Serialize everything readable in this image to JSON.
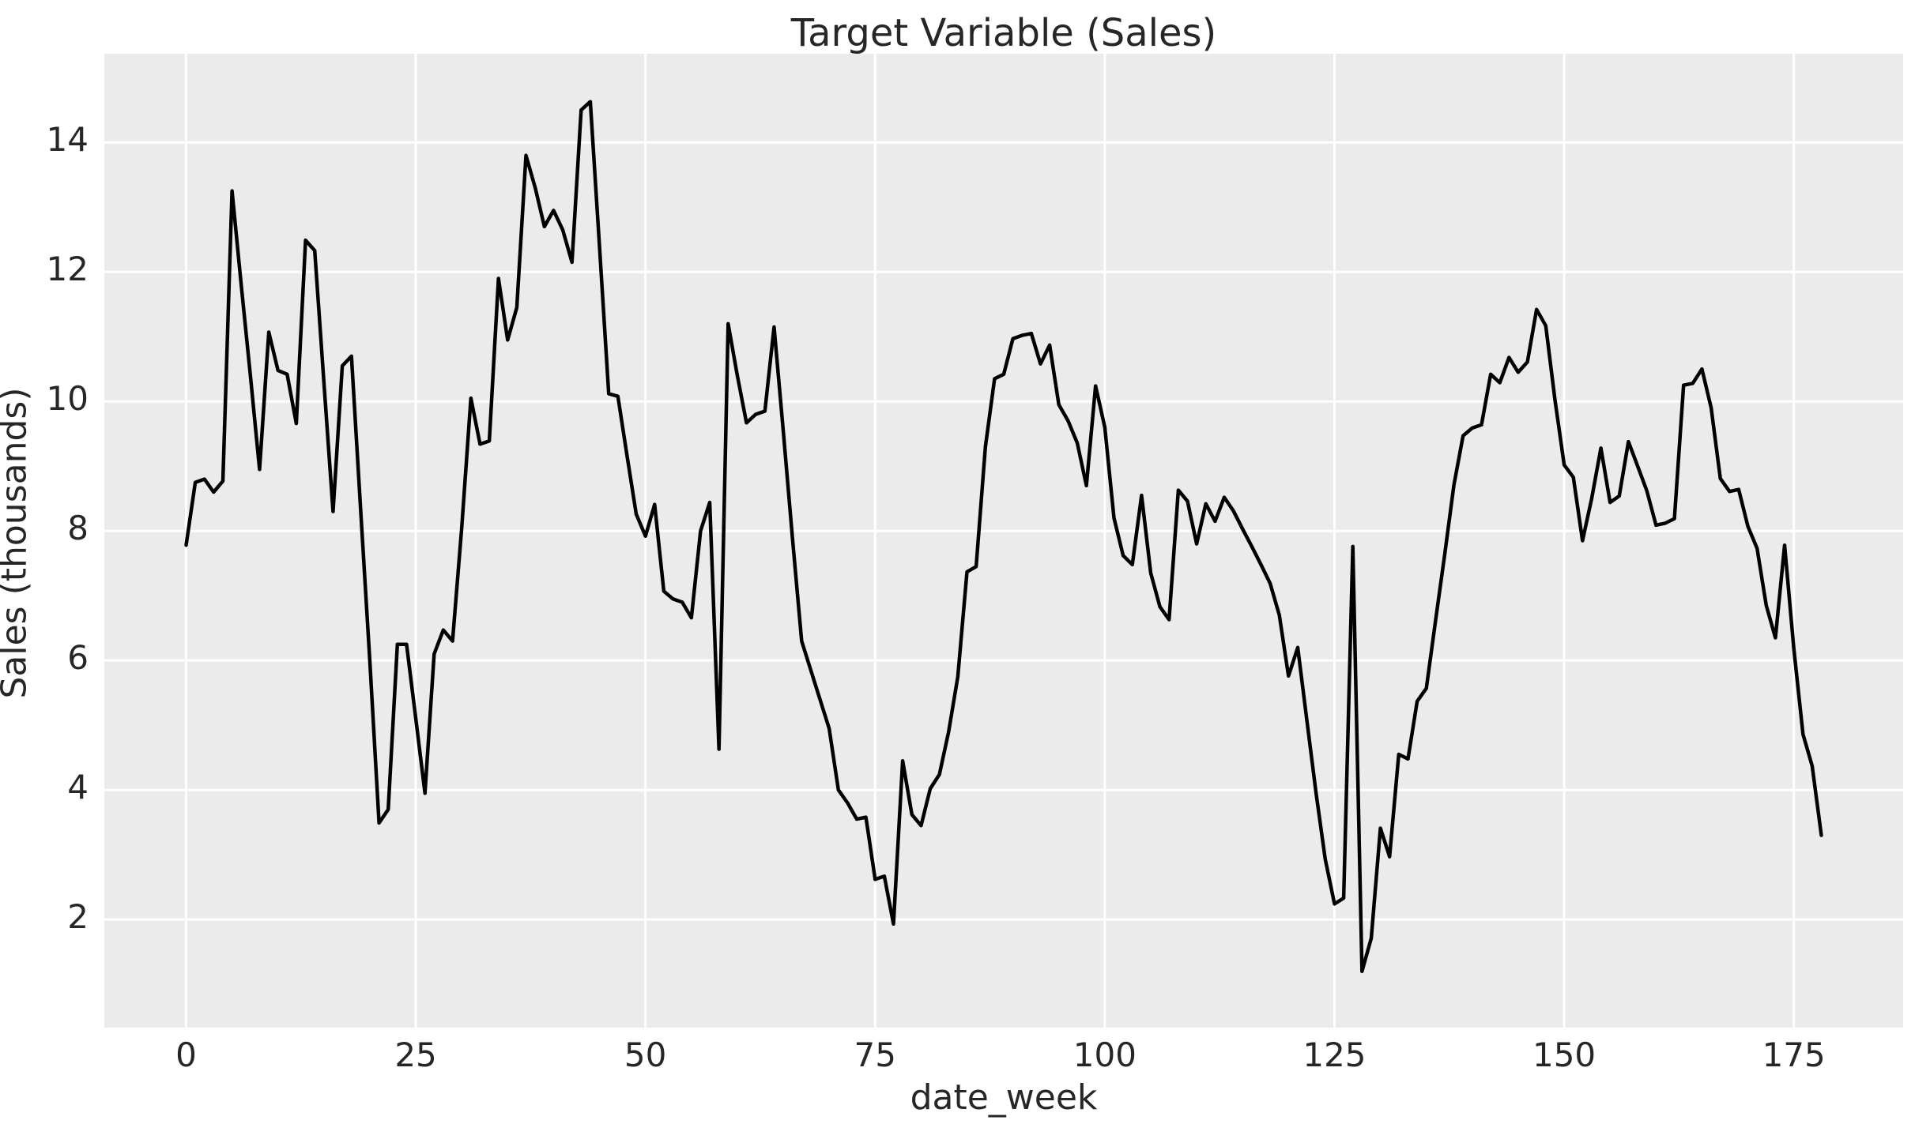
{
  "chart_data": {
    "type": "line",
    "title": "Target Variable (Sales)",
    "xlabel": "date_week",
    "ylabel": "Sales (thousands)",
    "x_ticks": [
      0,
      25,
      50,
      75,
      100,
      125,
      150,
      175
    ],
    "y_ticks": [
      2,
      4,
      6,
      8,
      10,
      12,
      14
    ],
    "xlim": [
      -8.9,
      186.9
    ],
    "ylim": [
      0.33,
      15.37
    ],
    "grid": true,
    "legend_position": "none",
    "series_name": "Sales",
    "x_start": 0,
    "x_step": 1,
    "values": [
      7.78,
      8.75,
      8.8,
      8.6,
      8.77,
      13.25,
      11.8,
      10.4,
      8.95,
      11.07,
      10.48,
      10.42,
      9.66,
      12.49,
      12.33,
      10.3,
      8.3,
      10.55,
      10.7,
      8.33,
      6.0,
      3.49,
      3.7,
      6.25,
      6.25,
      5.1,
      3.95,
      6.1,
      6.47,
      6.3,
      8.05,
      10.05,
      9.34,
      9.39,
      11.9,
      10.95,
      11.45,
      13.8,
      13.3,
      12.7,
      12.95,
      12.65,
      12.15,
      14.5,
      14.63,
      12.4,
      10.12,
      10.08,
      9.16,
      8.26,
      7.92,
      8.41,
      7.07,
      6.95,
      6.9,
      6.66,
      8.0,
      8.44,
      4.63,
      11.2,
      10.4,
      9.67,
      9.8,
      9.85,
      11.15,
      9.55,
      7.9,
      6.3,
      5.85,
      5.4,
      4.95,
      4.0,
      3.8,
      3.55,
      3.58,
      2.62,
      2.67,
      1.93,
      4.45,
      3.62,
      3.45,
      4.02,
      4.24,
      4.9,
      5.75,
      7.37,
      7.45,
      9.3,
      10.35,
      10.42,
      10.97,
      11.02,
      11.05,
      10.58,
      10.87,
      9.95,
      9.7,
      9.36,
      8.7,
      10.24,
      9.6,
      8.2,
      7.62,
      7.48,
      8.55,
      7.35,
      6.83,
      6.63,
      8.63,
      8.46,
      7.8,
      8.42,
      8.15,
      8.52,
      8.31,
      8.03,
      7.76,
      7.48,
      7.19,
      6.7,
      5.76,
      6.2,
      5.07,
      3.95,
      2.93,
      2.24,
      2.33,
      7.76,
      1.2,
      1.71,
      3.41,
      2.97,
      4.55,
      4.48,
      5.37,
      5.57,
      6.61,
      7.64,
      8.71,
      9.47,
      9.59,
      9.64,
      10.42,
      10.29,
      10.68,
      10.45,
      10.61,
      11.42,
      11.17,
      10.03,
      9.02,
      8.83,
      7.85,
      8.5,
      9.28,
      8.44,
      8.54,
      9.38,
      9.0,
      8.62,
      8.09,
      8.12,
      8.19,
      10.25,
      10.28,
      10.5,
      9.9,
      8.81,
      8.61,
      8.64,
      8.07,
      7.73,
      6.85,
      6.35,
      7.78,
      6.18,
      4.86,
      4.37,
      3.3
    ],
    "colors": {
      "line": "#000000",
      "axes_background": "#ebebeb",
      "gridline": "#ffffff",
      "figure_background": "#ffffff",
      "text": "#262626"
    }
  }
}
